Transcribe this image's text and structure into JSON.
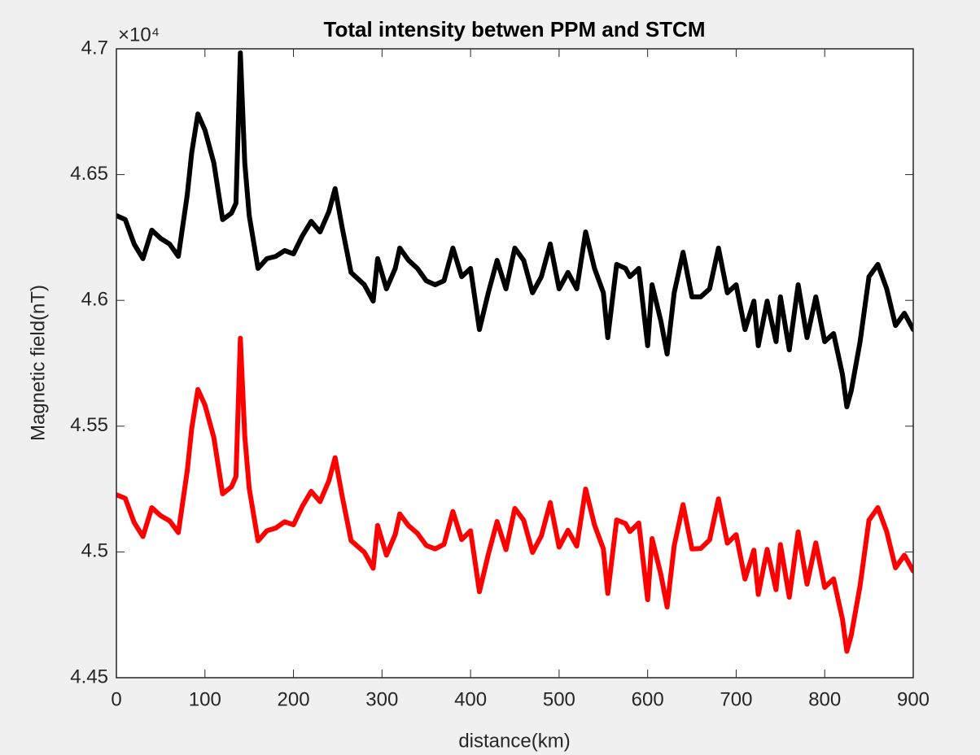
{
  "chart_data": {
    "type": "line",
    "title": "Total intensity betwen PPM and STCM",
    "x_label": "distance(km)",
    "y_label": "Magnetic field(nT)",
    "y_exponent_label": "×10⁴",
    "x": [
      0,
      10,
      20,
      30,
      40,
      50,
      60,
      70,
      80,
      85,
      92,
      100,
      110,
      120,
      130,
      135,
      140,
      145,
      150,
      160,
      170,
      180,
      190,
      200,
      210,
      220,
      230,
      240,
      247,
      255,
      265,
      280,
      290,
      295,
      305,
      315,
      320,
      330,
      340,
      350,
      360,
      370,
      380,
      390,
      400,
      410,
      420,
      430,
      440,
      450,
      460,
      470,
      480,
      490,
      500,
      510,
      520,
      530,
      540,
      550,
      555,
      565,
      575,
      580,
      590,
      600,
      605,
      615,
      622,
      630,
      640,
      650,
      660,
      670,
      680,
      690,
      700,
      710,
      720,
      725,
      735,
      745,
      750,
      760,
      770,
      780,
      790,
      800,
      810,
      820,
      825,
      830,
      840,
      850,
      860,
      870,
      880,
      890,
      900
    ],
    "series": [
      {
        "color": "#000000",
        "values": [
          46337,
          46321,
          46224,
          46166,
          46279,
          46246,
          46224,
          46175,
          46418,
          46586,
          46741,
          46677,
          46547,
          46321,
          46347,
          46386,
          46984,
          46547,
          46337,
          46127,
          46166,
          46175,
          46198,
          46185,
          46256,
          46314,
          46272,
          46353,
          46444,
          46289,
          46111,
          46062,
          45997,
          46166,
          46046,
          46127,
          46208,
          46159,
          46127,
          46078,
          46062,
          46078,
          46208,
          46094,
          46127,
          45884,
          46030,
          46159,
          46046,
          46208,
          46159,
          46030,
          46094,
          46224,
          46046,
          46111,
          46046,
          46272,
          46127,
          46030,
          45852,
          46143,
          46127,
          46094,
          46127,
          45820,
          46062,
          45917,
          45787,
          46030,
          46191,
          46014,
          46014,
          46046,
          46208,
          46030,
          46062,
          45884,
          45997,
          45820,
          45997,
          45836,
          46014,
          45803,
          46062,
          45852,
          46014,
          45836,
          45868,
          45706,
          45577,
          45642,
          45836,
          46094,
          46143,
          46046,
          45900,
          45949,
          45884
        ]
      },
      {
        "color": "#ff0000",
        "values": [
          45227,
          45213,
          45117,
          45061,
          45176,
          45144,
          45124,
          45077,
          45321,
          45490,
          45646,
          45584,
          45455,
          45231,
          45259,
          45299,
          45850,
          45461,
          45252,
          45044,
          45084,
          45095,
          45120,
          45108,
          45181,
          45241,
          45200,
          45283,
          45375,
          45222,
          45045,
          44999,
          44935,
          45105,
          44987,
          45070,
          45151,
          45104,
          45074,
          45026,
          45012,
          45030,
          45161,
          45049,
          45084,
          44842,
          44990,
          45121,
          45009,
          45173,
          45126,
          44998,
          45064,
          45196,
          45019,
          45086,
          45023,
          45250,
          45107,
          45012,
          44835,
          45127,
          45113,
          45081,
          45115,
          44810,
          45053,
          44909,
          44781,
          45025,
          45188,
          45012,
          45014,
          45048,
          45211,
          45035,
          45069,
          44892,
          45007,
          44831,
          45010,
          44850,
          45029,
          44820,
          45080,
          44872,
          45036,
          44859,
          44893,
          44733,
          44605,
          44670,
          44866,
          45126,
          45176,
          45081,
          44937,
          44987,
          44924
        ]
      }
    ],
    "xlim": [
      0,
      900
    ],
    "xticks": [
      0,
      100,
      200,
      300,
      400,
      500,
      600,
      700,
      800,
      900
    ],
    "ylim": [
      44500,
      47000
    ],
    "yticks": [
      {
        "value": 44500,
        "label": "4.45"
      },
      {
        "value": 45000,
        "label": "4.5"
      },
      {
        "value": 45500,
        "label": "4.55"
      },
      {
        "value": 46000,
        "label": "4.6"
      },
      {
        "value": 46500,
        "label": "4.65"
      },
      {
        "value": 47000,
        "label": "4.7"
      }
    ],
    "grid": false
  }
}
